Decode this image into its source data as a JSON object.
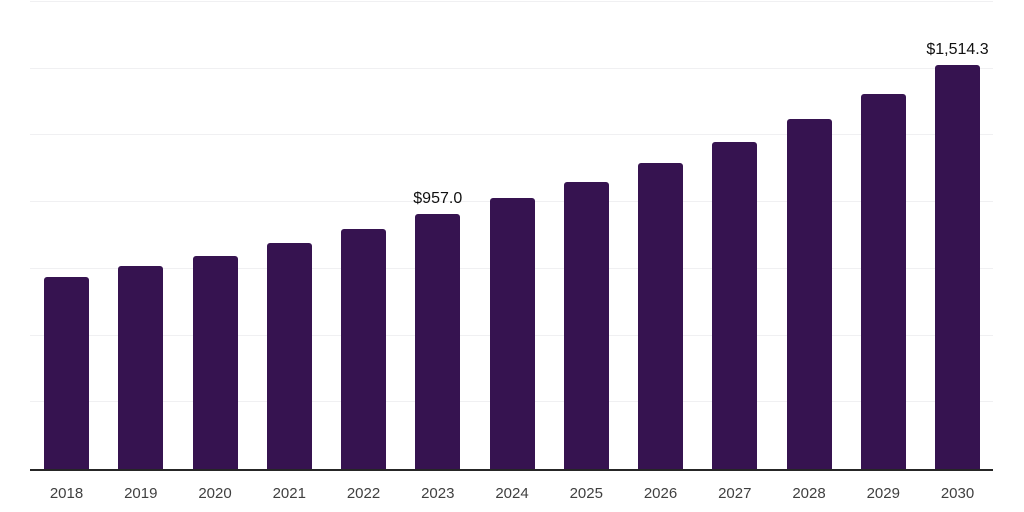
{
  "chart_data": {
    "type": "bar",
    "title": "",
    "categories": [
      "2018",
      "2019",
      "2020",
      "2021",
      "2022",
      "2023",
      "2024",
      "2025",
      "2026",
      "2027",
      "2028",
      "2029",
      "2030"
    ],
    "values": [
      721,
      762,
      799,
      847,
      899,
      957.0,
      1014,
      1077,
      1148,
      1226,
      1311,
      1406,
      1514.3
    ],
    "value_labels": [
      "",
      "",
      "",
      "",
      "",
      "$957.0",
      "",
      "",
      "",
      "",
      "",
      "",
      "$1,514.3"
    ],
    "ylim": [
      0,
      1750
    ],
    "gridline_interval": 250,
    "gridline_values": [
      250,
      500,
      750,
      1000,
      1250,
      1500,
      1750
    ],
    "grid": "horizontal-only",
    "legend_position": "none",
    "y_axis_labels_visible": false,
    "colors": {
      "bar": "#361350",
      "axis_line": "#262626",
      "gridline": "#f0f0f2",
      "tick_label": "#404040",
      "value_label": "#111111",
      "background": "#ffffff"
    }
  }
}
